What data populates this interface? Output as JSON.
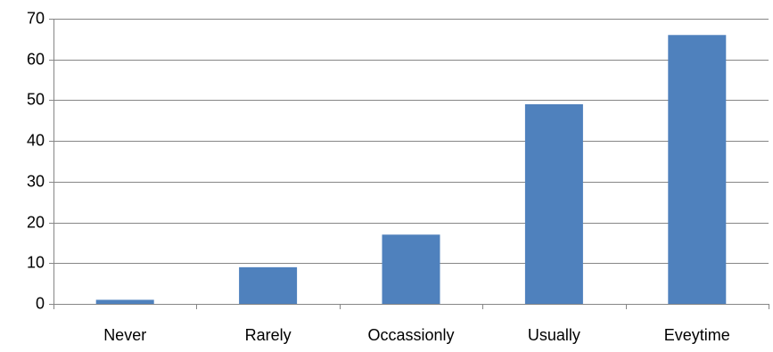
{
  "chart_data": {
    "type": "bar",
    "categories": [
      "Never",
      "Rarely",
      "Occassionly",
      "Usually",
      "Eveytime"
    ],
    "values": [
      1,
      9,
      17,
      49,
      66
    ],
    "ylim": [
      0,
      70
    ],
    "yticks": [
      "0",
      "10",
      "20",
      "30",
      "40",
      "50",
      "60",
      "70"
    ],
    "grid": true,
    "bar_color": "#4F81BD",
    "grid_color": "#868686"
  }
}
